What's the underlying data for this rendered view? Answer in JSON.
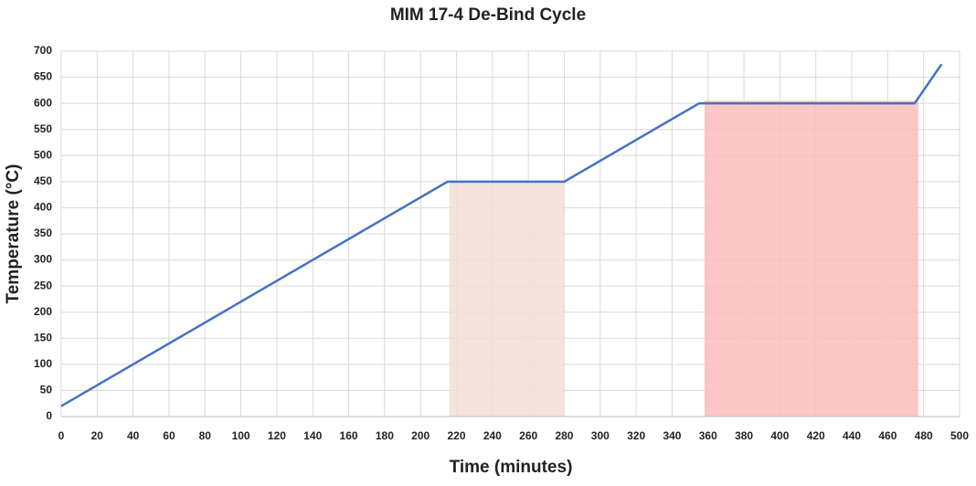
{
  "chart_data": {
    "type": "line",
    "title": "MIM 17-4 De-Bind Cycle",
    "x_label": "Time (minutes)",
    "y_label": "Temperature (°C)",
    "x": [
      0,
      215,
      280,
      355,
      475,
      490
    ],
    "series": [
      {
        "color": "#4472c4",
        "values": [
          20,
          450,
          450,
          600,
          600,
          675
        ]
      }
    ],
    "shaded_regions": [
      {
        "x0": 216,
        "x1": 280,
        "y": 450,
        "color": "#f5ddd6"
      },
      {
        "x0": 358,
        "x1": 477,
        "y": 605,
        "color": "#fbbcbc"
      }
    ],
    "xlim": [
      0,
      500
    ],
    "xticks": [
      0,
      20,
      40,
      60,
      80,
      100,
      120,
      140,
      160,
      180,
      200,
      220,
      240,
      260,
      280,
      300,
      320,
      340,
      360,
      380,
      400,
      420,
      440,
      460,
      480,
      500
    ],
    "ylim": [
      0,
      700
    ],
    "yticks": [
      0,
      50,
      100,
      150,
      200,
      250,
      300,
      350,
      400,
      450,
      500,
      550,
      600,
      650,
      700
    ],
    "grid": true
  }
}
